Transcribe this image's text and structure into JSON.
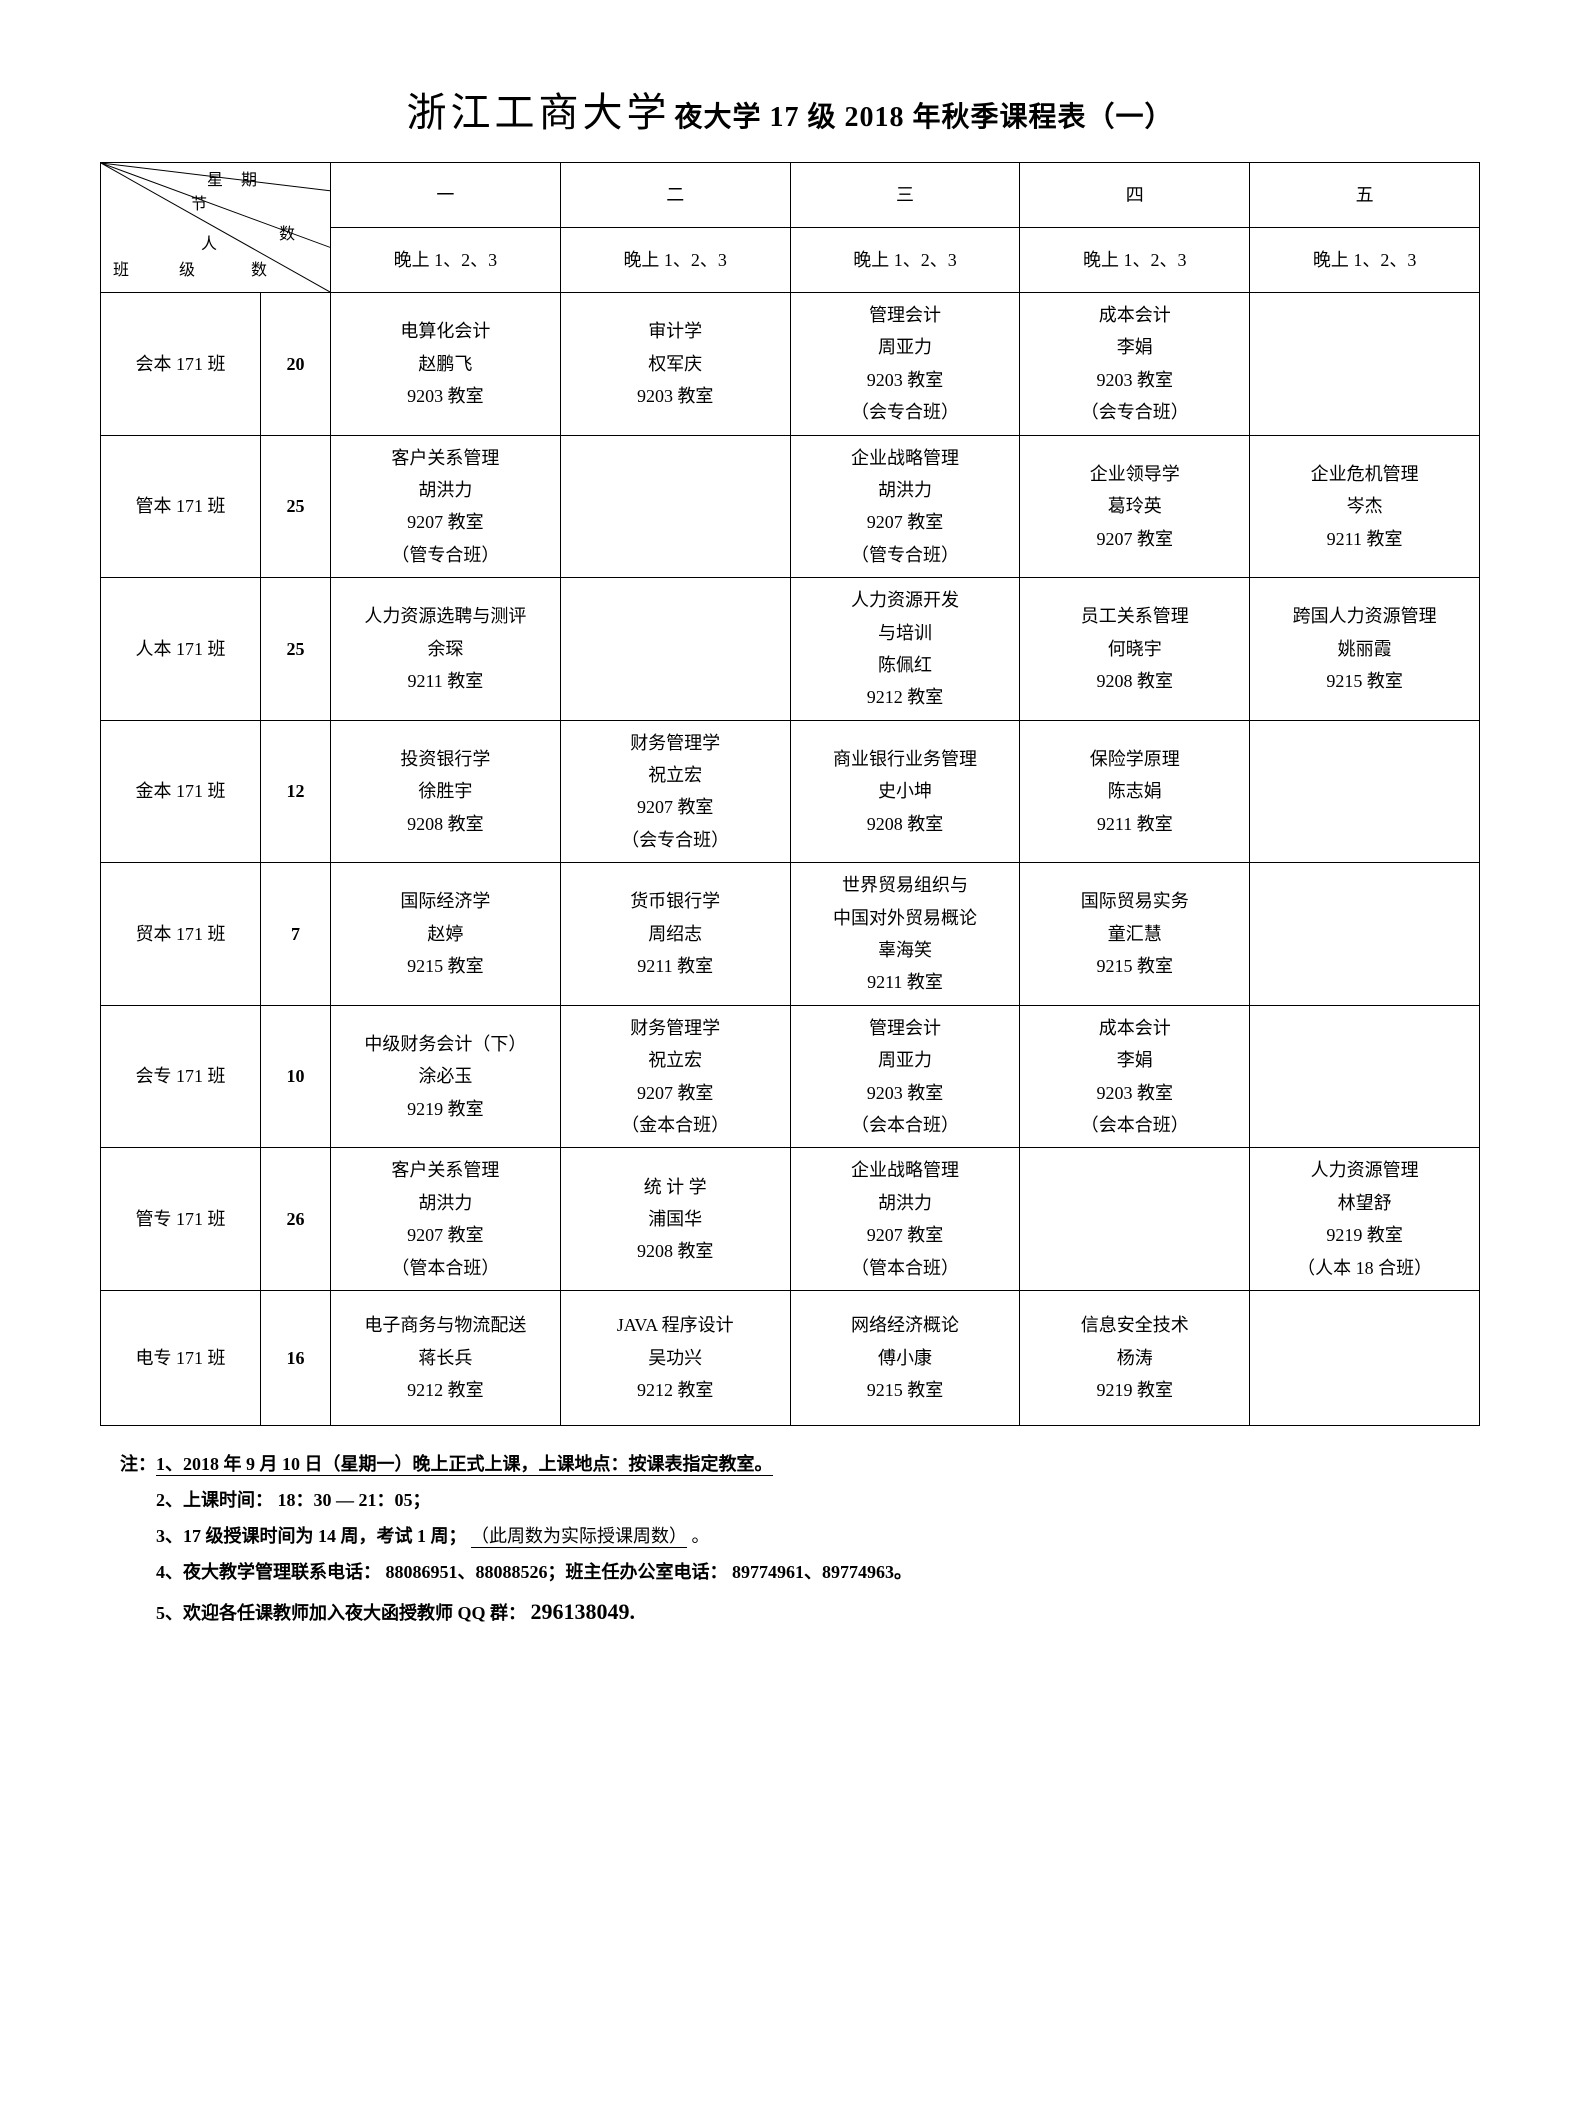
{
  "title": {
    "school": "浙江工商大学",
    "rest": "夜大学 17 级 2018 年秋季课程表（一）"
  },
  "diag": {
    "xq": "星期",
    "jie": "节",
    "ren": "人",
    "shu1": "数",
    "ban": "班",
    "ji": "级",
    "shu2": "数"
  },
  "days": [
    "一",
    "二",
    "三",
    "四",
    "五"
  ],
  "period": "晚上 1、2、3",
  "rows": [
    {
      "class": "会本 171 班",
      "count": "20",
      "cells": [
        [
          "电算化会计",
          "赵鹏飞",
          "9203 教室"
        ],
        [
          "审计学",
          "权军庆",
          "9203 教室"
        ],
        [
          "管理会计",
          "周亚力",
          "9203 教室",
          "（会专合班）"
        ],
        [
          "成本会计",
          "李娟",
          "9203 教室",
          "（会专合班）"
        ],
        []
      ]
    },
    {
      "class": "管本 171 班",
      "count": "25",
      "cells": [
        [
          "客户关系管理",
          "胡洪力",
          "9207 教室",
          "（管专合班）"
        ],
        [],
        [
          "企业战略管理",
          "胡洪力",
          "9207 教室",
          "（管专合班）"
        ],
        [
          "企业领导学",
          "葛玲英",
          "9207 教室"
        ],
        [
          "企业危机管理",
          "岑杰",
          "9211 教室"
        ]
      ]
    },
    {
      "class": "人本 171 班",
      "count": "25",
      "cells": [
        [
          "人力资源选聘与测评",
          "余琛",
          "9211 教室"
        ],
        [],
        [
          "人力资源开发",
          "与培训",
          "陈佩红",
          "9212 教室"
        ],
        [
          "员工关系管理",
          "何晓宇",
          "9208 教室"
        ],
        [
          "跨国人力资源管理",
          "姚丽霞",
          "9215 教室"
        ]
      ]
    },
    {
      "class": "金本 171 班",
      "count": "12",
      "cells": [
        [
          "投资银行学",
          "徐胜宇",
          "9208 教室"
        ],
        [
          "财务管理学",
          "祝立宏",
          "9207 教室",
          "（会专合班）"
        ],
        [
          "商业银行业务管理",
          "史小坤",
          "9208 教室"
        ],
        [
          "保险学原理",
          "陈志娟",
          "9211 教室"
        ],
        []
      ]
    },
    {
      "class": "贸本 171 班",
      "count": "7",
      "cells": [
        [
          "国际经济学",
          "赵婷",
          "9215 教室"
        ],
        [
          "货币银行学",
          "周绍志",
          "9211 教室"
        ],
        [
          "世界贸易组织与",
          "中国对外贸易概论",
          "辜海笑",
          "9211 教室"
        ],
        [
          "国际贸易实务",
          "童汇慧",
          "9215 教室"
        ],
        []
      ]
    },
    {
      "class": "会专 171 班",
      "count": "10",
      "cells": [
        [
          "中级财务会计（下）",
          "涂必玉",
          "9219 教室"
        ],
        [
          "财务管理学",
          "祝立宏",
          "9207 教室",
          "（金本合班）"
        ],
        [
          "管理会计",
          "周亚力",
          "9203 教室",
          "（会本合班）"
        ],
        [
          "成本会计",
          "李娟",
          "9203 教室",
          "（会本合班）"
        ],
        []
      ]
    },
    {
      "class": "管专 171 班",
      "count": "26",
      "cells": [
        [
          "客户关系管理",
          "胡洪力",
          "9207 教室",
          "（管本合班）"
        ],
        [
          "统 计 学",
          "浦国华",
          "9208 教室"
        ],
        [
          "企业战略管理",
          "胡洪力",
          "9207 教室",
          "（管本合班）"
        ],
        [],
        [
          "人力资源管理",
          "林望舒",
          "9219 教室",
          "（人本 18 合班）"
        ]
      ]
    },
    {
      "class": "电专 171 班",
      "count": "16",
      "cells": [
        [
          "电子商务与物流配送",
          "蒋长兵",
          "9212 教室"
        ],
        [
          "JAVA 程序设计",
          "吴功兴",
          "9212 教室"
        ],
        [
          "网络经济概论",
          "傅小康",
          "9215 教室"
        ],
        [
          "信息安全技术",
          "杨涛",
          "9219 教室"
        ],
        []
      ]
    }
  ],
  "notes": {
    "lead": "注：",
    "n1a": "1、2018 年 9 月 10 日（星期一）晚上正式上课，上课地点：按课表指定教室。",
    "n2": "2、上课时间：  18：30 — 21：05；",
    "n3a": "3、17 级授课时间为      14 周，考试 1 周；",
    "n3b": "（此周数为实际授课周数）",
    "n3c": "。",
    "n4": "4、夜大教学管理联系电话：  88086951、88088526；班主任办公室电话：  89774961、89774963。",
    "n5a": "5、欢迎各任课教师加入夜大函授教师          QQ 群：",
    "n5b": "296138049."
  }
}
